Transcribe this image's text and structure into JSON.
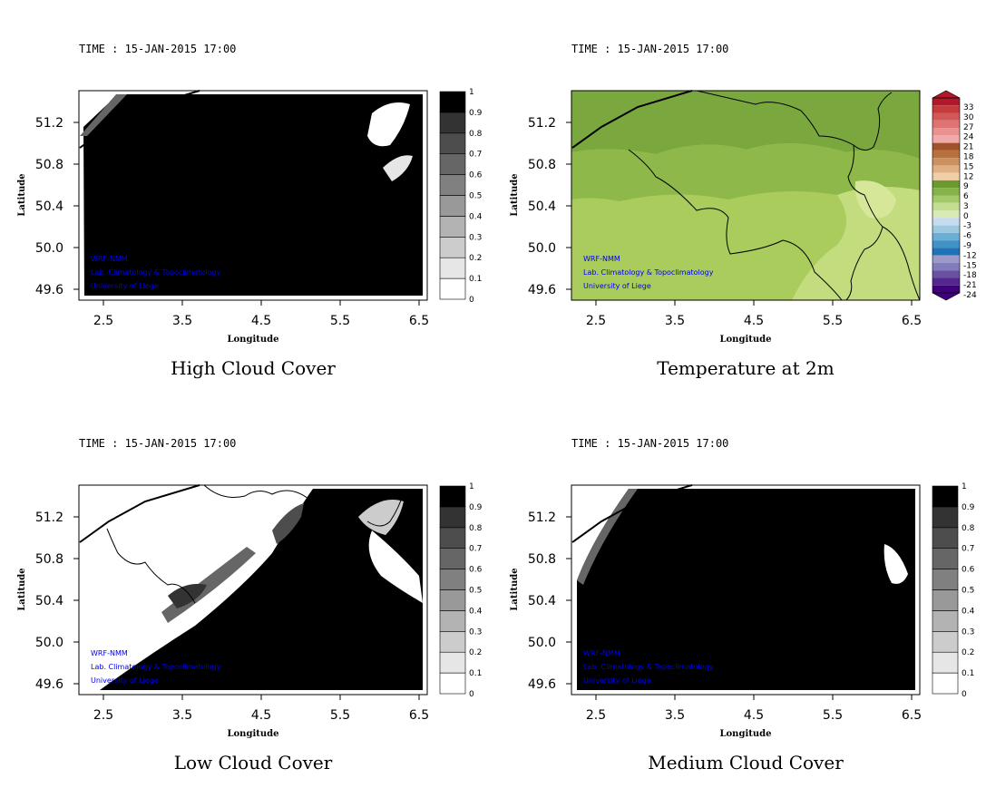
{
  "colors": {
    "credit": "#0000ee",
    "border": "#000000",
    "gray_scale": [
      "#ffffff",
      "#e6e6e6",
      "#cccccc",
      "#b3b3b3",
      "#999999",
      "#808080",
      "#666666",
      "#4d4d4d",
      "#333333",
      "#1a1a1a",
      "#000000"
    ]
  },
  "credits": [
    "WRF-NMM",
    "Lab. Climatology & Topoclimatology",
    "University of Liege"
  ],
  "chart_data": [
    {
      "id": "high",
      "type": "heatmap",
      "title": "High Cloud Cover",
      "time_label": "TIME : 15-JAN-2015 17:00",
      "xlabel": "Longitude",
      "ylabel": "Latitude",
      "xlim": [
        2.2,
        6.6
      ],
      "ylim": [
        49.5,
        51.5
      ],
      "xticks": [
        "2.5",
        "3.5",
        "4.5",
        "5.5",
        "6.5"
      ],
      "yticks": [
        "49.6",
        "50.0",
        "50.4",
        "50.8",
        "51.2"
      ],
      "colorbar_type": "gray",
      "colorbar_ticks": [
        "0",
        "0.1",
        "0.2",
        "0.3",
        "0.4",
        "0.5",
        "0.6",
        "0.7",
        "0.8",
        "0.9",
        "1"
      ],
      "dominant_value": 1.0
    },
    {
      "id": "temp",
      "type": "heatmap",
      "title": "Temperature at 2m",
      "time_label": "TIME : 15-JAN-2015 17:00",
      "xlabel": "Longitude",
      "ylabel": "Latitude",
      "xlim": [
        2.2,
        6.6
      ],
      "ylim": [
        49.5,
        51.5
      ],
      "xticks": [
        "2.5",
        "3.5",
        "4.5",
        "5.5",
        "6.5"
      ],
      "yticks": [
        "49.6",
        "50.0",
        "50.4",
        "50.8",
        "51.2"
      ],
      "colorbar_type": "temperature",
      "colorbar_ticks": [
        "33",
        "30",
        "27",
        "24",
        "21",
        "18",
        "15",
        "12",
        "9",
        "6",
        "3",
        "0",
        "-3",
        "-6",
        "-9",
        "-12",
        "-15",
        "-18",
        "-21",
        "-24"
      ],
      "dominant_range": [
        6,
        9
      ]
    },
    {
      "id": "low",
      "type": "heatmap",
      "title": "Low Cloud Cover",
      "time_label": "TIME : 15-JAN-2015 17:00",
      "xlabel": "Longitude",
      "ylabel": "Latitude",
      "xlim": [
        2.2,
        6.6
      ],
      "ylim": [
        49.5,
        51.5
      ],
      "xticks": [
        "2.5",
        "3.5",
        "4.5",
        "5.5",
        "6.5"
      ],
      "yticks": [
        "49.6",
        "50.0",
        "50.4",
        "50.8",
        "51.2"
      ],
      "colorbar_type": "gray",
      "colorbar_ticks": [
        "0",
        "0.1",
        "0.2",
        "0.3",
        "0.4",
        "0.5",
        "0.6",
        "0.7",
        "0.8",
        "0.9",
        "1"
      ]
    },
    {
      "id": "medium",
      "type": "heatmap",
      "title": "Medium Cloud Cover",
      "time_label": "TIME : 15-JAN-2015 17:00",
      "xlabel": "Longitude",
      "ylabel": "Latitude",
      "xlim": [
        2.2,
        6.6
      ],
      "ylim": [
        49.5,
        51.5
      ],
      "xticks": [
        "2.5",
        "3.5",
        "4.5",
        "5.5",
        "6.5"
      ],
      "yticks": [
        "49.6",
        "50.0",
        "50.4",
        "50.8",
        "51.2"
      ],
      "colorbar_type": "gray",
      "colorbar_ticks": [
        "0",
        "0.1",
        "0.2",
        "0.3",
        "0.4",
        "0.5",
        "0.6",
        "0.7",
        "0.8",
        "0.9",
        "1"
      ],
      "dominant_value": 1.0
    }
  ]
}
